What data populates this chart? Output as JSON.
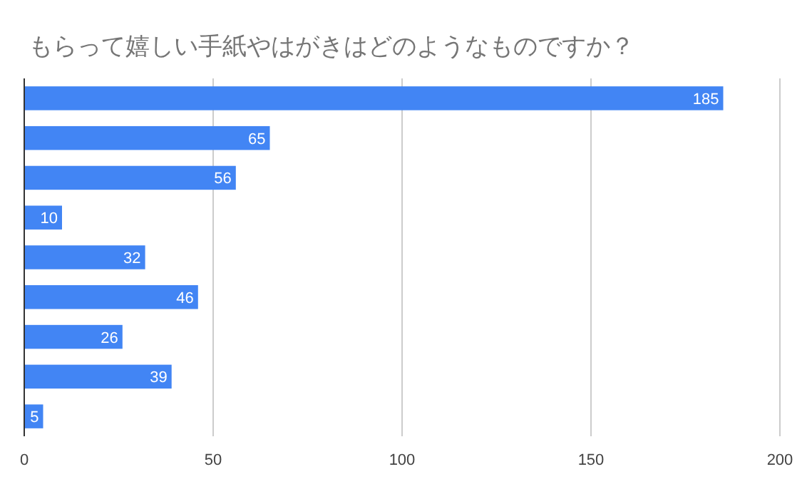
{
  "chart_data": {
    "type": "bar",
    "orientation": "horizontal",
    "title": "もらって嬉しい手紙やはがきはどのようなものですか？",
    "categories": [
      null,
      null,
      null,
      null,
      null,
      null,
      null,
      null,
      null
    ],
    "values": [
      185,
      65,
      56,
      10,
      32,
      46,
      26,
      39,
      5
    ],
    "color": "#4285f4",
    "xlim": [
      0,
      200
    ],
    "xticks": [
      0,
      50,
      100,
      150,
      200
    ],
    "grid": "x",
    "data_labels": true
  }
}
